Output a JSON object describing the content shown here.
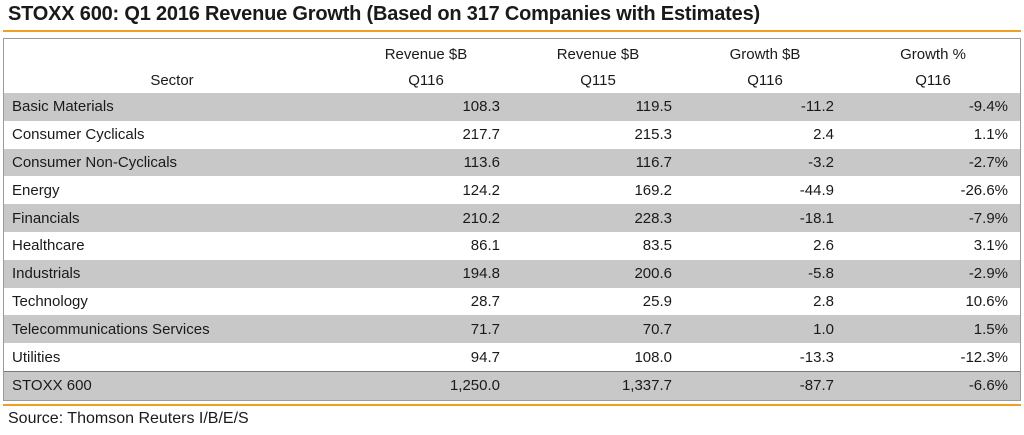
{
  "title": "STOXX 600: Q1 2016 Revenue Growth (Based on 317 Companies with Estimates)",
  "source": "Source: Thomson Reuters I/B/E/S",
  "colors": {
    "accent_rule": "#f0a020",
    "row_shade": "#c8c8c8"
  },
  "chart_data": {
    "type": "table",
    "title": "STOXX 600: Q1 2016 Revenue Growth (Based on 317 Companies with Estimates)",
    "columns": [
      {
        "line1": "",
        "line2": "Sector"
      },
      {
        "line1": "Revenue $B",
        "line2": "Q116"
      },
      {
        "line1": "Revenue $B",
        "line2": "Q115"
      },
      {
        "line1": "Growth $B",
        "line2": "Q116"
      },
      {
        "line1": "Growth %",
        "line2": "Q116"
      }
    ],
    "rows": [
      [
        "Basic Materials",
        "108.3",
        "119.5",
        "-11.2",
        "-9.4%"
      ],
      [
        "Consumer Cyclicals",
        "217.7",
        "215.3",
        "2.4",
        "1.1%"
      ],
      [
        "Consumer Non-Cyclicals",
        "113.6",
        "116.7",
        "-3.2",
        "-2.7%"
      ],
      [
        "Energy",
        "124.2",
        "169.2",
        "-44.9",
        "-26.6%"
      ],
      [
        "Financials",
        "210.2",
        "228.3",
        "-18.1",
        "-7.9%"
      ],
      [
        "Healthcare",
        "86.1",
        "83.5",
        "2.6",
        "3.1%"
      ],
      [
        "Industrials",
        "194.8",
        "200.6",
        "-5.8",
        "-2.9%"
      ],
      [
        "Technology",
        "28.7",
        "25.9",
        "2.8",
        "10.6%"
      ],
      [
        "Telecommunications Services",
        "71.7",
        "70.7",
        "1.0",
        "1.5%"
      ],
      [
        "Utilities",
        "94.7",
        "108.0",
        "-13.3",
        "-12.3%"
      ]
    ],
    "total": [
      "STOXX 600",
      "1,250.0",
      "1,337.7",
      "-87.7",
      "-6.6%"
    ]
  }
}
